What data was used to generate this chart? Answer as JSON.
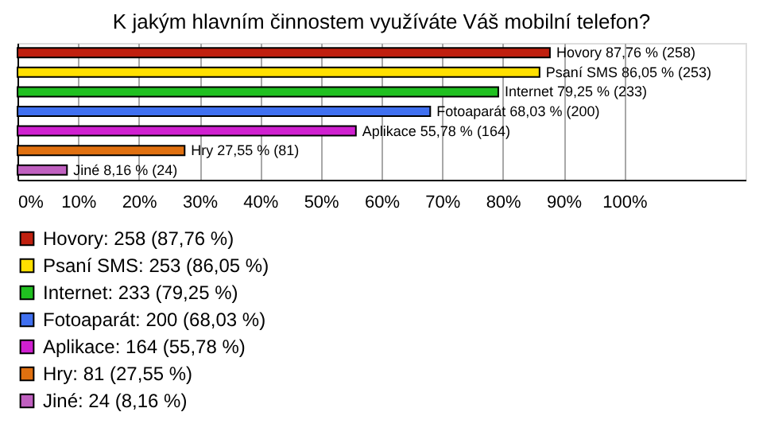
{
  "chart_data": {
    "type": "bar",
    "orientation": "horizontal",
    "title": "K jakým hlavním činnostem využíváte Váš mobilní telefon?",
    "categories": [
      null,
      null,
      null,
      null,
      null,
      null,
      null
    ],
    "series": [
      {
        "name": "Hovory: 258 (87,76 %)",
        "color": "#c0200f",
        "values": [
          87.76,
          null,
          null,
          null,
          null,
          null,
          null
        ],
        "value_labels": [
          "Hovory 87,76 % (258)",
          null,
          null,
          null,
          null,
          null,
          null
        ]
      },
      {
        "name": "Psaní SMS: 253 (86,05 %)",
        "color": "#ffe000",
        "values": [
          null,
          86.05,
          null,
          null,
          null,
          null,
          null
        ],
        "value_labels": [
          null,
          "Psaní SMS 86,05 % (253)",
          null,
          null,
          null,
          null,
          null
        ]
      },
      {
        "name": "Internet: 233 (79,25 %)",
        "color": "#20c020",
        "values": [
          null,
          null,
          79.25,
          null,
          null,
          null,
          null
        ],
        "value_labels": [
          null,
          null,
          "Internet 79,25 % (233)",
          null,
          null,
          null,
          null
        ]
      },
      {
        "name": "Fotoaparát: 200 (68,03 %)",
        "color": "#4070f0",
        "values": [
          null,
          null,
          null,
          68.03,
          null,
          null,
          null
        ],
        "value_labels": [
          null,
          null,
          null,
          "Fotoaparát 68,03 % (200)",
          null,
          null,
          null
        ]
      },
      {
        "name": "Aplikace: 164 (55,78 %)",
        "color": "#d020d0",
        "values": [
          null,
          null,
          null,
          null,
          55.78,
          null,
          null
        ],
        "value_labels": [
          null,
          null,
          null,
          null,
          "Aplikace 55,78 % (164)",
          null,
          null
        ]
      },
      {
        "name": "Hry: 81 (27,55 %)",
        "color": "#e07010",
        "values": [
          null,
          null,
          null,
          null,
          null,
          27.55,
          null
        ],
        "value_labels": [
          null,
          null,
          null,
          null,
          null,
          "Hry 27,55 % (81)",
          null
        ]
      },
      {
        "name": "Jiné: 24 (8,16 %)",
        "color": "#c060c0",
        "values": [
          null,
          null,
          null,
          null,
          null,
          null,
          8.16
        ],
        "value_labels": [
          null,
          null,
          null,
          null,
          null,
          null,
          "Jiné 8,16 % (24)"
        ]
      }
    ],
    "xlim": [
      0,
      120
    ],
    "xticks": [
      {
        "value": 0,
        "label": "0%"
      },
      {
        "value": 10,
        "label": "10%"
      },
      {
        "value": 20,
        "label": "20%"
      },
      {
        "value": 30,
        "label": "30%"
      },
      {
        "value": 40,
        "label": "40%"
      },
      {
        "value": 50,
        "label": "50%"
      },
      {
        "value": 60,
        "label": "60%"
      },
      {
        "value": 70,
        "label": "70%"
      },
      {
        "value": 80,
        "label": "80%"
      },
      {
        "value": 90,
        "label": "90%"
      },
      {
        "value": 100,
        "label": "100%"
      }
    ],
    "grid": "x",
    "legend": "bottom",
    "tick_labels": "x"
  }
}
